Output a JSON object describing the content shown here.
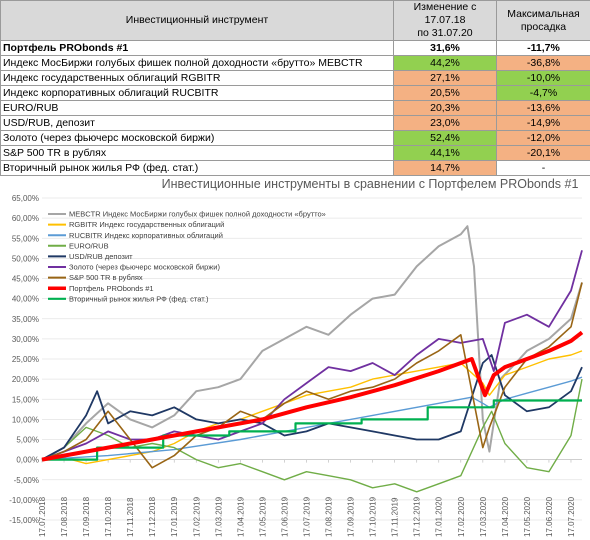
{
  "table": {
    "headers": [
      "Инвестиционный инструмент",
      "Изменение с 17.07.18 по 31.07.20",
      "Максимальная просадка"
    ],
    "header_change_lines": [
      "Изменение с 17.07.18",
      "по 31.07.20"
    ],
    "header_drawdown_lines": [
      "Максимальная",
      "просадка"
    ],
    "rows": [
      {
        "name": "Портфель PRObonds #1",
        "change": "31,6%",
        "drawdown": "-11,7%",
        "bold": true,
        "change_color": "#ffffff",
        "drawdown_color": "#ffffff"
      },
      {
        "name": "Индекс МосБиржи голубых фишек полной доходности «брутто» MEBCTR",
        "change": "44,2%",
        "drawdown": "-36,8%",
        "bold": false,
        "change_color": "#92d050",
        "drawdown_color": "#f4b183"
      },
      {
        "name": "Индекс государственных облигаций RGBITR",
        "change": "27,1%",
        "drawdown": "-10,0%",
        "bold": false,
        "change_color": "#f4b183",
        "drawdown_color": "#92d050"
      },
      {
        "name": "Индекс корпоративных облигаций RUCBITR",
        "change": "20,5%",
        "drawdown": "-4,7%",
        "bold": false,
        "change_color": "#f4b183",
        "drawdown_color": "#92d050"
      },
      {
        "name": "EURO/RUB",
        "change": "20,3%",
        "drawdown": "-13,6%",
        "bold": false,
        "change_color": "#f4b183",
        "drawdown_color": "#f4b183"
      },
      {
        "name": "USD/RUB, депозит",
        "change": "23,0%",
        "drawdown": "-14,9%",
        "bold": false,
        "change_color": "#f4b183",
        "drawdown_color": "#f4b183"
      },
      {
        "name": "Золото (через фьючерс московской биржи)",
        "change": "52,4%",
        "drawdown": "-12,0%",
        "bold": false,
        "change_color": "#92d050",
        "drawdown_color": "#f4b183"
      },
      {
        "name": "S&P 500 TR в рублях",
        "change": "44,1%",
        "drawdown": "-20,1%",
        "bold": false,
        "change_color": "#92d050",
        "drawdown_color": "#f4b183"
      },
      {
        "name": "Вторичный рынок жилья РФ (фед. стат.)",
        "change": "14,7%",
        "drawdown": "-",
        "bold": false,
        "change_color": "#f4b183",
        "drawdown_color": "#ffffff"
      }
    ]
  },
  "chart_data": {
    "type": "line",
    "title": "Инвестиционные инструменты в сравнении с Портфелем PRObonds #1",
    "ylim": [
      -15,
      65
    ],
    "y_ticks": [
      "65,00%",
      "60,00%",
      "55,00%",
      "50,00%",
      "45,00%",
      "40,00%",
      "35,00%",
      "30,00%",
      "25,00%",
      "20,00%",
      "15,00%",
      "10,00%",
      "5,00%",
      "0,00%",
      "-5,00%",
      "-10,00%",
      "-15,00%"
    ],
    "x_ticks": [
      "17.07.2018",
      "17.08.2018",
      "17.09.2018",
      "17.10.2018",
      "17.11.2018",
      "17.12.2018",
      "17.01.2019",
      "17.02.2019",
      "17.03.2019",
      "17.04.2019",
      "17.05.2019",
      "17.06.2019",
      "17.07.2019",
      "17.08.2019",
      "17.09.2019",
      "17.10.2019",
      "17.11.2019",
      "17.12.2019",
      "17.01.2020",
      "17.02.2020",
      "17.03.2020",
      "17.04.2020",
      "17.05.2020",
      "17.06.2020",
      "17.07.2020"
    ],
    "x_unit": "месяцы с 17.07.2018",
    "legend_position": "top-left",
    "grid": true,
    "series": [
      {
        "name": "MEBCTR Индекс МосБиржи голубых фишек полной доходности «брутто»",
        "color": "#a6a6a6",
        "width": 2,
        "points": [
          [
            0,
            0
          ],
          [
            1,
            3
          ],
          [
            2,
            9
          ],
          [
            3,
            14
          ],
          [
            4,
            10
          ],
          [
            5,
            8
          ],
          [
            6,
            11
          ],
          [
            7,
            17
          ],
          [
            8,
            18
          ],
          [
            9,
            20
          ],
          [
            10,
            27
          ],
          [
            11,
            30
          ],
          [
            12,
            33
          ],
          [
            13,
            31
          ],
          [
            14,
            36
          ],
          [
            15,
            40
          ],
          [
            16,
            41
          ],
          [
            17,
            48
          ],
          [
            18,
            53
          ],
          [
            19,
            56
          ],
          [
            19.3,
            58
          ],
          [
            19.6,
            48
          ],
          [
            20,
            10
          ],
          [
            20.3,
            2
          ],
          [
            20.8,
            20
          ],
          [
            21.5,
            24
          ],
          [
            22,
            27
          ],
          [
            23,
            30
          ],
          [
            24,
            35
          ],
          [
            24.5,
            44
          ]
        ]
      },
      {
        "name": "RGBITR Индекс государственных облигаций",
        "color": "#ffc000",
        "width": 1.4,
        "points": [
          [
            0,
            0
          ],
          [
            1,
            0.5
          ],
          [
            2,
            -1
          ],
          [
            3,
            0
          ],
          [
            4,
            1
          ],
          [
            5,
            2
          ],
          [
            6,
            4
          ],
          [
            7,
            7
          ],
          [
            8,
            9
          ],
          [
            9,
            10
          ],
          [
            10,
            12
          ],
          [
            11,
            14
          ],
          [
            12,
            16
          ],
          [
            13,
            17
          ],
          [
            14,
            18
          ],
          [
            15,
            20
          ],
          [
            16,
            21
          ],
          [
            17,
            22
          ],
          [
            18,
            23
          ],
          [
            19,
            24
          ],
          [
            20,
            19
          ],
          [
            20.3,
            16
          ],
          [
            21,
            21
          ],
          [
            22,
            23
          ],
          [
            23,
            25
          ],
          [
            24,
            26
          ],
          [
            24.5,
            27
          ]
        ]
      },
      {
        "name": "RUCBITR Индекс корпоративных облигаций",
        "color": "#5b9bd5",
        "width": 1.4,
        "points": [
          [
            0,
            0
          ],
          [
            3,
            1
          ],
          [
            6,
            2.5
          ],
          [
            9,
            5
          ],
          [
            12,
            8
          ],
          [
            15,
            11
          ],
          [
            18,
            14
          ],
          [
            19.5,
            15.5
          ],
          [
            20,
            14
          ],
          [
            20.3,
            13
          ],
          [
            21,
            15
          ],
          [
            22,
            16.5
          ],
          [
            23,
            18
          ],
          [
            24,
            19.5
          ],
          [
            24.5,
            20.5
          ]
        ]
      },
      {
        "name": "EURO/RUB",
        "color": "#70ad47",
        "width": 1.4,
        "points": [
          [
            0,
            0
          ],
          [
            1,
            3
          ],
          [
            2,
            8
          ],
          [
            3,
            6
          ],
          [
            4,
            3
          ],
          [
            5,
            4
          ],
          [
            6,
            3
          ],
          [
            7,
            0
          ],
          [
            8,
            -2
          ],
          [
            9,
            -1
          ],
          [
            10,
            -3
          ],
          [
            11,
            -5
          ],
          [
            12,
            -3
          ],
          [
            13,
            -4
          ],
          [
            14,
            -5
          ],
          [
            15,
            -7
          ],
          [
            16,
            -6
          ],
          [
            17,
            -8
          ],
          [
            18,
            -6
          ],
          [
            19,
            -4
          ],
          [
            20,
            8
          ],
          [
            20.4,
            12
          ],
          [
            21,
            4
          ],
          [
            22,
            -2
          ],
          [
            23,
            -3
          ],
          [
            24,
            6
          ],
          [
            24.5,
            20
          ]
        ]
      },
      {
        "name": "USD/RUB депозит",
        "color": "#1f3864",
        "width": 1.8,
        "points": [
          [
            0,
            0
          ],
          [
            1,
            3
          ],
          [
            2,
            11
          ],
          [
            2.5,
            17
          ],
          [
            3,
            9
          ],
          [
            4,
            12
          ],
          [
            5,
            11
          ],
          [
            6,
            13
          ],
          [
            7,
            10
          ],
          [
            8,
            9
          ],
          [
            9,
            10
          ],
          [
            10,
            9
          ],
          [
            11,
            6
          ],
          [
            12,
            7
          ],
          [
            13,
            9
          ],
          [
            14,
            8
          ],
          [
            15,
            7
          ],
          [
            16,
            6
          ],
          [
            17,
            5
          ],
          [
            18,
            5
          ],
          [
            19,
            7
          ],
          [
            20,
            24
          ],
          [
            20.4,
            26
          ],
          [
            21,
            16
          ],
          [
            22,
            12
          ],
          [
            23,
            13
          ],
          [
            24,
            17
          ],
          [
            24.5,
            23
          ]
        ]
      },
      {
        "name": "Золото (через фьючерс московской биржи)",
        "color": "#7030a0",
        "width": 1.8,
        "points": [
          [
            0,
            0
          ],
          [
            1,
            2
          ],
          [
            2,
            4
          ],
          [
            3,
            7
          ],
          [
            4,
            5
          ],
          [
            5,
            5
          ],
          [
            6,
            7
          ],
          [
            7,
            6
          ],
          [
            8,
            5
          ],
          [
            9,
            7
          ],
          [
            10,
            9
          ],
          [
            11,
            15
          ],
          [
            12,
            19
          ],
          [
            13,
            23
          ],
          [
            14,
            22
          ],
          [
            15,
            24
          ],
          [
            16,
            21
          ],
          [
            17,
            26
          ],
          [
            18,
            30
          ],
          [
            19,
            29
          ],
          [
            20,
            30
          ],
          [
            20.5,
            22
          ],
          [
            21,
            34
          ],
          [
            22,
            36
          ],
          [
            23,
            33
          ],
          [
            24,
            42
          ],
          [
            24.5,
            52
          ]
        ]
      },
      {
        "name": "S&P 500 TR в рублях",
        "color": "#996515",
        "width": 1.6,
        "points": [
          [
            0,
            0
          ],
          [
            1,
            2
          ],
          [
            2,
            5
          ],
          [
            3,
            12
          ],
          [
            4,
            5
          ],
          [
            5,
            -2
          ],
          [
            6,
            1
          ],
          [
            7,
            6
          ],
          [
            8,
            8
          ],
          [
            9,
            12
          ],
          [
            10,
            10
          ],
          [
            11,
            14
          ],
          [
            12,
            17
          ],
          [
            13,
            15
          ],
          [
            14,
            17
          ],
          [
            15,
            18
          ],
          [
            16,
            20
          ],
          [
            17,
            24
          ],
          [
            18,
            27
          ],
          [
            19,
            31
          ],
          [
            20,
            3
          ],
          [
            20.3,
            8
          ],
          [
            21,
            18
          ],
          [
            22,
            25
          ],
          [
            23,
            28
          ],
          [
            24,
            33
          ],
          [
            24.5,
            44
          ]
        ]
      },
      {
        "name": "Портфель PRObonds #1",
        "color": "#ff0000",
        "width": 4,
        "points": [
          [
            0,
            0
          ],
          [
            2,
            2
          ],
          [
            4,
            4
          ],
          [
            6,
            6
          ],
          [
            8,
            8
          ],
          [
            10,
            10
          ],
          [
            12,
            13
          ],
          [
            14,
            15.5
          ],
          [
            16,
            18.5
          ],
          [
            18,
            22
          ],
          [
            19.5,
            25
          ],
          [
            20.1,
            16
          ],
          [
            20.5,
            21
          ],
          [
            21,
            23
          ],
          [
            22,
            25
          ],
          [
            23,
            27
          ],
          [
            24,
            29.5
          ],
          [
            24.5,
            31.6
          ]
        ]
      },
      {
        "name": "Вторичный рынок жилья РФ (фед. стат.)",
        "color": "#00b050",
        "width": 2.2,
        "points": [
          [
            0,
            0
          ],
          [
            2.5,
            0
          ],
          [
            2.5,
            3
          ],
          [
            5.5,
            3
          ],
          [
            5.5,
            6
          ],
          [
            8.5,
            6
          ],
          [
            8.5,
            7
          ],
          [
            11.5,
            7
          ],
          [
            11.5,
            9
          ],
          [
            14.5,
            9
          ],
          [
            14.5,
            10
          ],
          [
            17.5,
            10
          ],
          [
            17.5,
            13
          ],
          [
            20.5,
            13
          ],
          [
            20.5,
            14.7
          ],
          [
            24.5,
            14.7
          ]
        ]
      }
    ]
  }
}
